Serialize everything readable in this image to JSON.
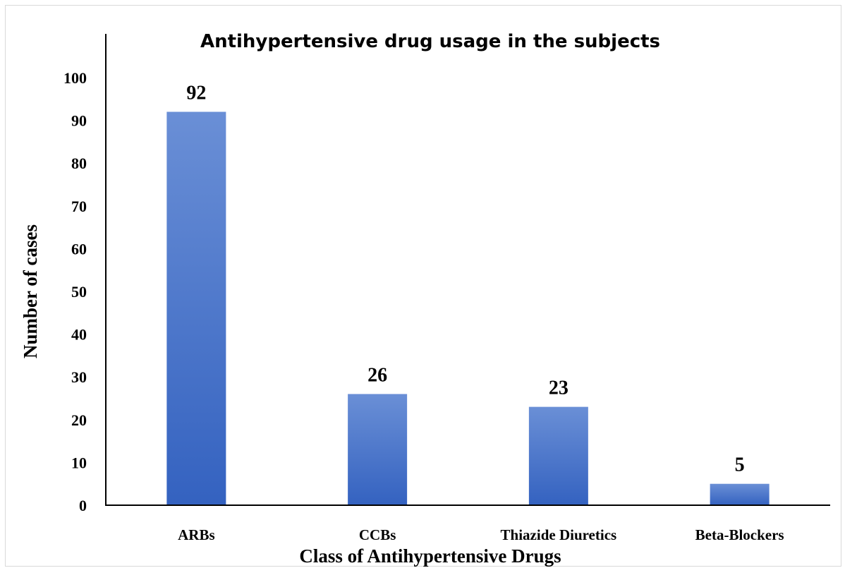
{
  "chart_data": {
    "type": "bar",
    "title": "Antihypertensive drug usage in the subjects",
    "xlabel": "Class of Antihypertensive Drugs",
    "ylabel": "Number of cases",
    "categories": [
      "ARBs",
      "CCBs",
      "Thiazide Diuretics",
      "Beta-Blockers"
    ],
    "values": [
      92,
      26,
      23,
      5
    ],
    "data_labels": [
      "92",
      "26",
      "23",
      "5"
    ],
    "ylim": [
      0,
      100
    ],
    "yticks": [
      "0",
      "10",
      "20",
      "30",
      "40",
      "50",
      "60",
      "70",
      "80",
      "90",
      "100"
    ],
    "grid": false,
    "legend": "none",
    "bar_color_top": "#6a8fd6",
    "bar_color_bottom": "#3462c0",
    "axis_color": "#000000"
  }
}
